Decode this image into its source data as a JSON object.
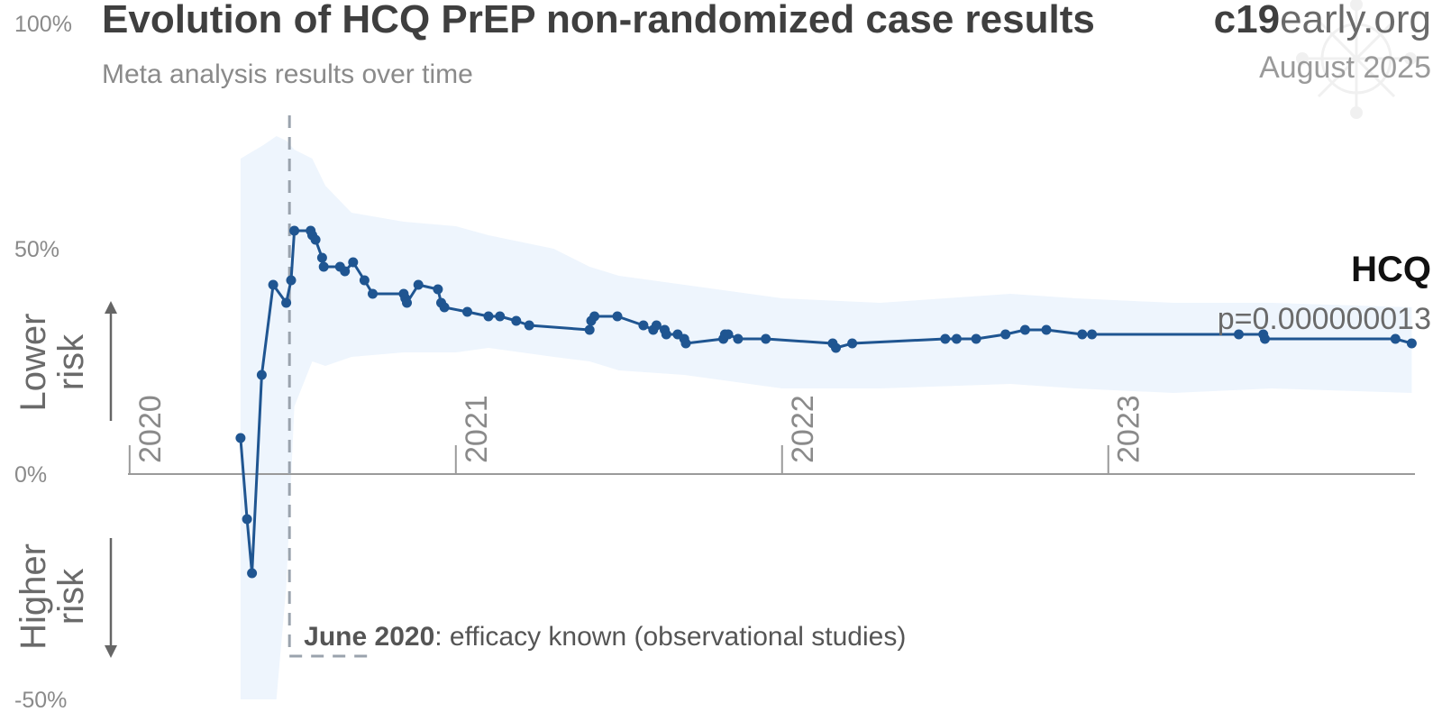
{
  "header": {
    "title": "Evolution of HCQ PrEP non-randomized case results",
    "subtitle": "Meta analysis results over time",
    "brand_bold": "c19",
    "brand_rest": "early.org",
    "date": "August 2025"
  },
  "labels": {
    "lower_risk": [
      "Lower",
      "risk"
    ],
    "higher_risk": [
      "Higher",
      "risk"
    ],
    "series_name": "HCQ",
    "p_value": "p=0.000000013",
    "annotation_bold": "June 2020",
    "annotation_rest": ": efficacy known (observational studies)"
  },
  "colors": {
    "line": "#1f5591",
    "band": "#eef5fd",
    "axis": "#9a9a9a",
    "marker": "#9aa3ad"
  },
  "chart_data": {
    "type": "line",
    "title": "Evolution of HCQ PrEP non-randomized case results",
    "subtitle": "Meta analysis results over time",
    "ylim": [
      -50,
      100
    ],
    "yticks": [
      {
        "value": 100,
        "label": "100%"
      },
      {
        "value": 50,
        "label": "50%"
      },
      {
        "value": 0,
        "label": "0%"
      },
      {
        "value": -50,
        "label": "-50%"
      }
    ],
    "xlim": [
      2019.995,
      2023.94
    ],
    "xticks": [
      {
        "value": 2020.0,
        "label": "2020"
      },
      {
        "value": 2021.0,
        "label": "2021"
      },
      {
        "value": 2022.0,
        "label": "2022"
      },
      {
        "value": 2023.0,
        "label": "2023"
      }
    ],
    "marker_line": {
      "x": 2020.49,
      "label": "June 2020: efficacy known (observational studies)"
    },
    "series": [
      {
        "name": "HCQ",
        "p_value": "p=0.000000013",
        "x": [
          2020.34,
          2020.36,
          2020.375,
          2020.405,
          2020.44,
          2020.48,
          2020.495,
          2020.505,
          2020.555,
          2020.56,
          2020.57,
          2020.59,
          2020.595,
          2020.645,
          2020.66,
          2020.685,
          2020.72,
          2020.745,
          2020.84,
          2020.845,
          2020.85,
          2020.885,
          2020.945,
          2020.955,
          2020.965,
          2021.035,
          2021.1,
          2021.135,
          2021.185,
          2021.225,
          2021.41,
          2021.415,
          2021.425,
          2021.495,
          2021.575,
          2021.605,
          2021.615,
          2021.64,
          2021.645,
          2021.68,
          2021.7,
          2021.705,
          2021.82,
          2021.825,
          2021.835,
          2021.865,
          2021.95,
          2022.155,
          2022.165,
          2022.215,
          2022.5,
          2022.535,
          2022.595,
          2022.685,
          2022.745,
          2022.81,
          2022.92,
          2022.95,
          2023.4,
          2023.475,
          2023.48,
          2023.88,
          2023.93
        ],
        "values": [
          8,
          -10,
          -22,
          22,
          42,
          38,
          43,
          54,
          54,
          53,
          52,
          48,
          46,
          46,
          45,
          47,
          43,
          40,
          40,
          39,
          38,
          42,
          41,
          38,
          37,
          36,
          35,
          35,
          34,
          33,
          32,
          34,
          35,
          35,
          33,
          32,
          33,
          32,
          31,
          31,
          30,
          29,
          30,
          31,
          31,
          30,
          30,
          29,
          28,
          29,
          30,
          30,
          30,
          31,
          32,
          32,
          31,
          31,
          31,
          31,
          30,
          30,
          29
        ]
      }
    ],
    "band": {
      "x": [
        2020.34,
        2020.41,
        2020.45,
        2020.48,
        2020.505,
        2020.56,
        2020.6,
        2020.68,
        2020.84,
        2021.0,
        2021.1,
        2021.3,
        2021.41,
        2021.5,
        2021.7,
        2022.0,
        2022.3,
        2022.7,
        2022.9,
        2023.2,
        2023.5,
        2023.93
      ],
      "upper": [
        70,
        73,
        75,
        74,
        72,
        70,
        64,
        58,
        56,
        55,
        53,
        50,
        46,
        44,
        42,
        39,
        38,
        40,
        39,
        38,
        38,
        37
      ],
      "lower": [
        -50,
        -50,
        -50,
        -25,
        15,
        25,
        24,
        26,
        27,
        27,
        28,
        26,
        25,
        23,
        22,
        19,
        19,
        20,
        19,
        18,
        19,
        18
      ]
    }
  }
}
